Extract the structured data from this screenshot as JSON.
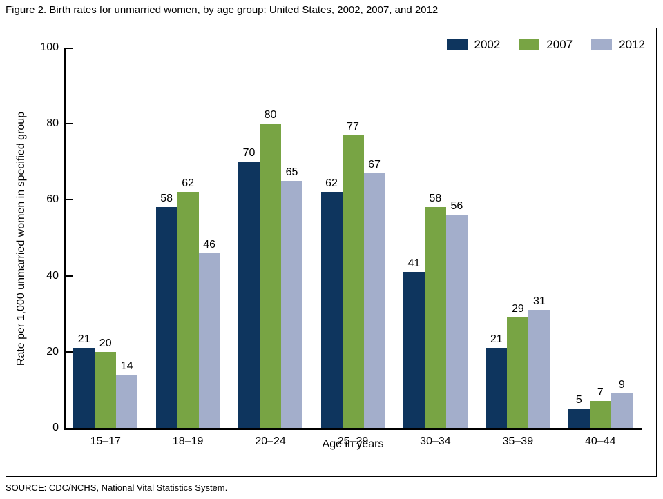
{
  "title": "Figure 2. Birth rates for unmarried women, by age group: United States, 2002, 2007, and 2012",
  "source": "SOURCE: CDC/NCHS, National Vital Statistics System.",
  "chart_data": {
    "type": "bar",
    "title": "Figure 2. Birth rates for unmarried women, by age group: United States, 2002, 2007, and 2012",
    "categories": [
      "15–17",
      "18–19",
      "20–24",
      "25–29",
      "30–34",
      "35–39",
      "40–44"
    ],
    "series": [
      {
        "name": "2002",
        "color": "#0e355e",
        "values": [
          21,
          58,
          70,
          62,
          41,
          21,
          5
        ]
      },
      {
        "name": "2007",
        "color": "#78a444",
        "values": [
          20,
          62,
          80,
          77,
          58,
          29,
          7
        ]
      },
      {
        "name": "2012",
        "color": "#a3aecb",
        "values": [
          14,
          46,
          65,
          67,
          56,
          31,
          9
        ]
      }
    ],
    "xlabel": "Age in years",
    "ylabel": "Rate per 1,000 unmarried women in specified group",
    "ylim": [
      0,
      100
    ],
    "yticks": [
      0,
      20,
      40,
      60,
      80,
      100
    ],
    "grid": false,
    "legend_position": "top-right",
    "bar_labels": true
  }
}
